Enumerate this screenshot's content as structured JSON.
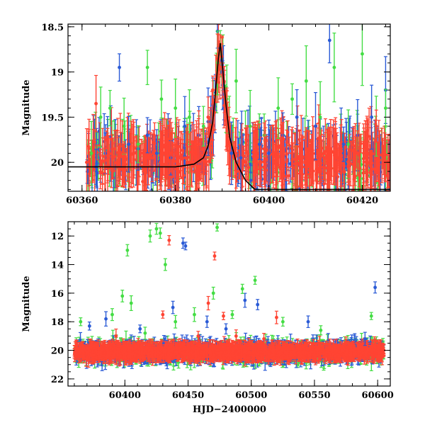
{
  "chart_data": [
    {
      "type": "scatter",
      "panel": "top",
      "title": "",
      "xlabel": "",
      "ylabel": "Magnitude",
      "xlim": [
        60357,
        60426
      ],
      "ylim": [
        20.32,
        18.47
      ],
      "y_inverted": true,
      "x_ticks": [
        60360,
        60380,
        60400,
        60420
      ],
      "x_tick_labels": [
        "60360",
        "60380",
        "60400",
        "60420"
      ],
      "y_ticks": [
        18.5,
        19,
        19.5,
        20
      ],
      "y_tick_labels": [
        "18.5",
        "19",
        "19.5",
        "20"
      ],
      "grid": false,
      "legend": "none",
      "series": [
        {
          "color": "#2b5bd6",
          "values_desc": "blue band photometry with error bars",
          "x": [
            60363,
            60365,
            60368,
            60370,
            60372,
            60374,
            60376,
            60379,
            60382,
            60385,
            60387,
            60389,
            60390,
            60392,
            60394,
            60398,
            60400,
            60403,
            60406,
            60410,
            60413,
            60416,
            60419,
            60422,
            60425
          ],
          "y": [
            20.05,
            19.9,
            18.95,
            19.8,
            19.85,
            19.7,
            19.9,
            19.95,
            19.6,
            19.7,
            19.55,
            18.55,
            19.0,
            19.9,
            19.95,
            19.8,
            19.9,
            19.7,
            19.5,
            19.6,
            18.65,
            19.8,
            19.7,
            19.5,
            19.2
          ]
        },
        {
          "color": "#44dd44",
          "values_desc": "green band photometry with error bars",
          "x": [
            60362,
            60364,
            60366,
            60369,
            60372,
            60374,
            60377,
            60380,
            60383,
            60386,
            60389,
            60391,
            60393,
            60396,
            60399,
            60402,
            60405,
            60408,
            60411,
            60414,
            60417,
            60420,
            60423,
            60425
          ],
          "y": [
            19.9,
            19.5,
            19.4,
            19.6,
            19.8,
            18.95,
            19.3,
            19.4,
            19.5,
            19.6,
            18.9,
            19.3,
            19.1,
            19.6,
            19.7,
            19.4,
            19.3,
            19.1,
            19.5,
            18.95,
            19.8,
            18.8,
            19.6,
            19.4
          ]
        },
        {
          "color": "#ff4433",
          "values_desc": "red band photometry with error bars",
          "x": [
            60361,
            60363,
            60365,
            60367,
            60369,
            60371,
            60373,
            60375,
            60377,
            60379,
            60381,
            60383,
            60385,
            60387,
            60388,
            60389,
            60390,
            60391,
            60393,
            60395,
            60397,
            60399,
            60401,
            60403,
            60405,
            60407,
            60409,
            60411,
            60413,
            60415,
            60417,
            60419,
            60421,
            60423,
            60425
          ],
          "y": [
            20.0,
            19.35,
            20.05,
            19.85,
            20.0,
            19.9,
            20.05,
            19.95,
            20.0,
            19.9,
            19.95,
            20.0,
            19.8,
            19.5,
            19.2,
            18.85,
            18.95,
            19.5,
            19.9,
            20.0,
            19.95,
            19.85,
            19.9,
            19.95,
            19.9,
            19.85,
            20.0,
            19.9,
            19.85,
            19.95,
            20.05,
            19.9,
            19.85,
            19.6,
            20.0
          ]
        }
      ],
      "model_curve": {
        "color": "#000000",
        "x": [
          60357,
          60380,
          60384,
          60386,
          60387,
          60388,
          60388.6,
          60389.2,
          60389.6,
          60390,
          60390.8,
          60391.6,
          60393,
          60395,
          60397,
          60426
        ],
        "y": [
          20.05,
          20.05,
          20.02,
          19.95,
          19.82,
          19.55,
          19.2,
          18.85,
          18.68,
          18.9,
          19.35,
          19.72,
          20.0,
          20.2,
          20.3,
          20.3
        ]
      }
    },
    {
      "type": "scatter",
      "panel": "bottom",
      "title": "",
      "xlabel": "HJD−2400000",
      "ylabel": "Magnitude",
      "xlim": [
        60355,
        60610
      ],
      "ylim": [
        22.5,
        11.0
      ],
      "y_inverted": true,
      "x_ticks": [
        60400,
        60450,
        60500,
        60550,
        60600
      ],
      "x_tick_labels": [
        "60400",
        "60450",
        "60500",
        "60550",
        "60600"
      ],
      "y_ticks": [
        12,
        14,
        16,
        18,
        20,
        22
      ],
      "y_tick_labels": [
        "12",
        "14",
        "16",
        "18",
        "20",
        "22"
      ],
      "grid": false,
      "legend": "none",
      "series": [
        {
          "color": "#2b5bd6",
          "values_desc": "blue band outliers",
          "x": [
            60372,
            60385,
            60412,
            60438,
            60446,
            60448,
            60465,
            60480,
            60495,
            60505,
            60545,
            60590,
            60598
          ],
          "y": [
            18.3,
            17.8,
            18.5,
            17.0,
            12.5,
            12.7,
            18.0,
            18.5,
            16.5,
            16.8,
            18.0,
            19.2,
            15.6
          ]
        },
        {
          "color": "#44dd44",
          "values_desc": "green band outliers",
          "x": [
            60365,
            60390,
            60398,
            60402,
            60405,
            60416,
            60420,
            60425,
            60428,
            60432,
            60440,
            60455,
            60470,
            60473,
            60485,
            60493,
            60503,
            60525,
            60555,
            60595
          ],
          "y": [
            18.0,
            17.5,
            16.2,
            13.0,
            16.7,
            18.8,
            12.0,
            11.5,
            11.8,
            14.0,
            18.0,
            17.5,
            16.0,
            11.4,
            17.5,
            15.7,
            15.1,
            18.0,
            18.6,
            17.6
          ]
        },
        {
          "color": "#ff4433",
          "values_desc": "red band outliers",
          "x": [
            60393,
            60430,
            60435,
            60458,
            60466,
            60471,
            60478,
            60488,
            60510,
            60520,
            60575
          ],
          "y": [
            19.0,
            17.5,
            12.3,
            19.0,
            16.7,
            13.4,
            17.6,
            19.0,
            19.2,
            17.7,
            19.5
          ]
        }
      ],
      "baseline": {
        "y_mean": 20.1,
        "scatter": 0.6
      }
    }
  ]
}
